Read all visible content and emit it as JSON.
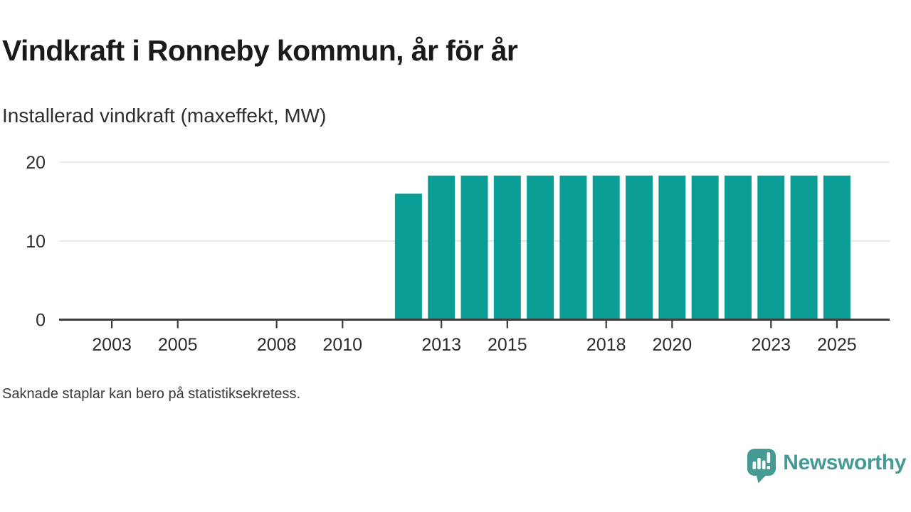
{
  "chart_data": {
    "type": "bar",
    "title": "Vindkraft i Ronneby kommun, år för år",
    "subtitle": "Installerad vindkraft (maxeffekt, MW)",
    "note": "Saknade staplar kan bero på statistiksekretess.",
    "ylabel": "MW",
    "categories": [
      2002,
      2003,
      2004,
      2005,
      2006,
      2007,
      2008,
      2009,
      2010,
      2011,
      2012,
      2013,
      2014,
      2015,
      2016,
      2017,
      2018,
      2019,
      2020,
      2021,
      2022,
      2023,
      2024,
      2025
    ],
    "values": [
      null,
      null,
      null,
      null,
      null,
      null,
      null,
      null,
      null,
      null,
      16,
      18.3,
      18.3,
      18.3,
      18.3,
      18.3,
      18.3,
      18.3,
      18.3,
      18.3,
      18.3,
      18.3,
      18.3,
      18.3
    ],
    "x_tick_labels": [
      "2003",
      "2005",
      "2008",
      "2010",
      "2013",
      "2015",
      "2018",
      "2020",
      "2023",
      "2025"
    ],
    "y_ticks": [
      0,
      10,
      20
    ],
    "ylim": [
      0,
      23
    ],
    "xlim": [
      2001.4,
      2026.6
    ],
    "grid": "horizontal",
    "legend": "none",
    "missing_bars_shown_as": "empty"
  },
  "colors": {
    "bar": "#0a9e97",
    "axis": "#3d3d3d",
    "grid": "#dcdcdc",
    "tick_label": "#2d2d2d",
    "brand_teal": "#469a94"
  },
  "brand": {
    "name": "Newsworthy",
    "icon": "bar-chart-speech-bubble-icon"
  }
}
